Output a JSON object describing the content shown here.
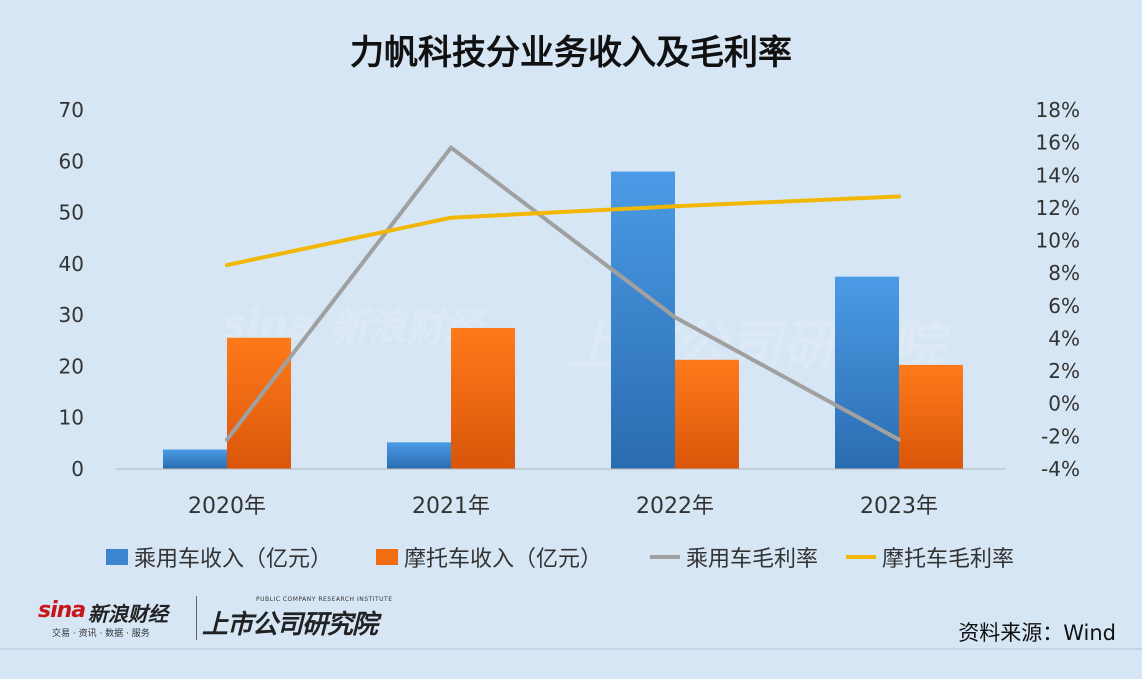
{
  "title": "力帆科技分业务收入及毛利率",
  "source": "资料来源：Wind",
  "branding": {
    "sina": "sina",
    "name": "新浪财经",
    "tagline": "交易 · 资讯 · 数据 · 服务",
    "institute": "上市公司研究院",
    "institute_en": "PUBLIC COMPANY RESEARCH INSTITUTE"
  },
  "chart_data": {
    "type": "bar",
    "title": "力帆科技分业务收入及毛利率",
    "categories": [
      "2020年",
      "2021年",
      "2022年",
      "2023年"
    ],
    "y_left": {
      "ticks": [
        "0",
        "10",
        "20",
        "30",
        "40",
        "50",
        "60",
        "70"
      ],
      "range": [
        0,
        70
      ]
    },
    "y_right": {
      "ticks": [
        "-4%",
        "-2%",
        "0%",
        "2%",
        "4%",
        "6%",
        "8%",
        "10%",
        "12%",
        "14%",
        "16%",
        "18%"
      ],
      "range": [
        -4,
        18
      ],
      "unit": "%"
    },
    "grid": false,
    "legend_position": "bottom",
    "series": [
      {
        "name": "乘用车收入（亿元）",
        "kind": "bar",
        "axis": "left",
        "color": "#3d85cf",
        "values": [
          3.8,
          5.2,
          58.0,
          37.5
        ]
      },
      {
        "name": "摩托车收入（亿元）",
        "kind": "bar",
        "axis": "left",
        "color": "#f26c14",
        "values": [
          25.6,
          27.5,
          21.3,
          20.3
        ]
      },
      {
        "name": "乘用车毛利率",
        "kind": "line",
        "axis": "right",
        "color": "#a0a0a0",
        "values": [
          -2.2,
          15.7,
          5.3,
          -2.2
        ]
      },
      {
        "name": "摩托车毛利率",
        "kind": "line",
        "axis": "right",
        "color": "#f2b705",
        "values": [
          8.5,
          11.4,
          12.1,
          12.7
        ]
      }
    ]
  }
}
